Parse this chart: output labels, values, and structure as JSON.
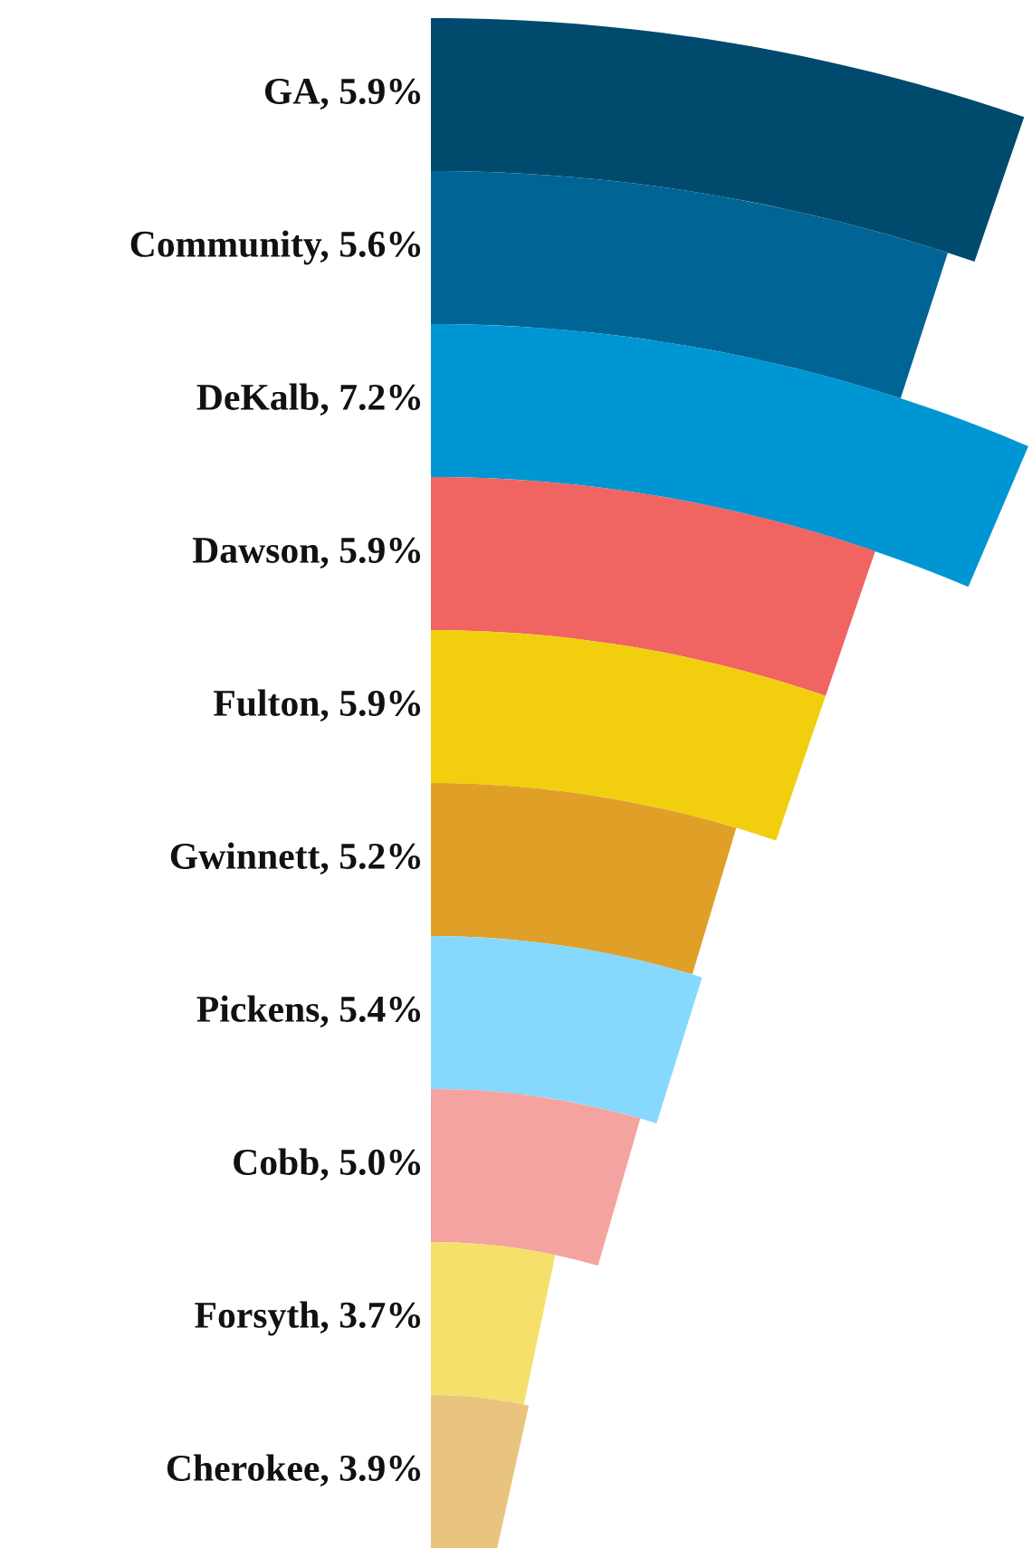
{
  "chart_data": {
    "type": "other",
    "categories": [
      null,
      null,
      null,
      null,
      null,
      null,
      null,
      null,
      null,
      null
    ],
    "values": [
      5.9,
      5.6,
      7.2,
      5.9,
      5.9,
      5.2,
      5.4,
      5.0,
      3.7,
      3.9
    ],
    "value_labels": [
      "GA, 5.9%",
      "Community, 5.6%",
      "DeKalb, 7.2%",
      "Dawson, 5.9%",
      "Fulton, 5.9%",
      "Gwinnett, 5.2%",
      "Pickens, 5.4%",
      "Cobb, 5.0%",
      "Forsyth, 3.7%",
      "Cherokee, 3.9%"
    ],
    "colors": [
      "#004a6e",
      "#006494",
      "#0096d3",
      "#f06461",
      "#f2cf0e",
      "#e0a028",
      "#87d8fd",
      "#f4a3a0",
      "#f6e06c",
      "#e8c47e"
    ]
  }
}
